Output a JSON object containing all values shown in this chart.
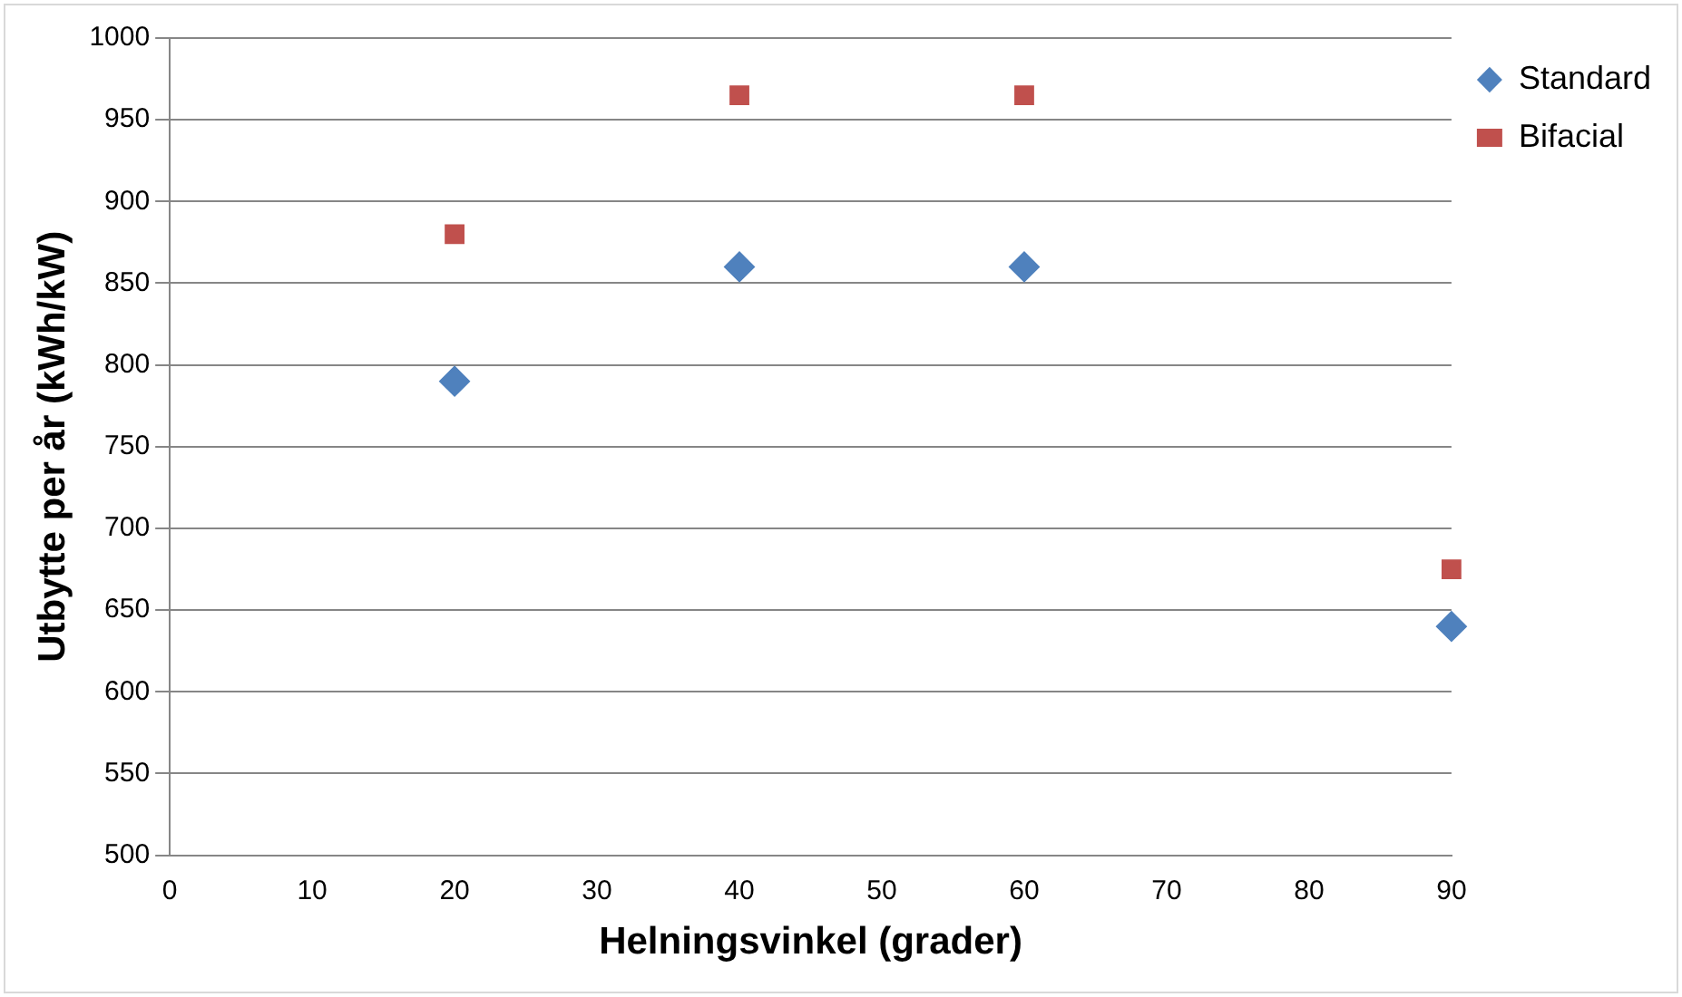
{
  "chart_data": {
    "type": "scatter",
    "xlabel": "Helningsvinkel (grader)",
    "ylabel": "Utbytte per år (kWh/kW)",
    "series": [
      {
        "name": "Standard",
        "color": "#4f81bd",
        "marker": "diamond",
        "x": [
          20,
          40,
          60,
          90
        ],
        "values": [
          790,
          860,
          860,
          640
        ]
      },
      {
        "name": "Bifacial",
        "color": "#c0504d",
        "marker": "square",
        "x": [
          20,
          40,
          60,
          90
        ],
        "values": [
          880,
          965,
          965,
          675
        ]
      }
    ],
    "xlim": [
      0,
      90
    ],
    "xticks": [
      0,
      10,
      20,
      30,
      40,
      50,
      60,
      70,
      80,
      90
    ],
    "ylim": [
      500,
      1000
    ],
    "yticks": [
      500,
      550,
      600,
      650,
      700,
      750,
      800,
      850,
      900,
      950,
      1000
    ],
    "grid": "y",
    "legend": "top right"
  }
}
